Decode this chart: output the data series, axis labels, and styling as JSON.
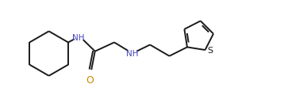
{
  "background_color": "#ffffff",
  "line_color": "#1a1a1a",
  "nh_color": "#4444bb",
  "o_color": "#cc8800",
  "line_width": 1.4,
  "font_size": 7.5,
  "fig_width": 3.82,
  "fig_height": 1.35,
  "dpi": 100,
  "xlim": [
    0,
    9.5
  ],
  "ylim": [
    0.2,
    3.8
  ]
}
